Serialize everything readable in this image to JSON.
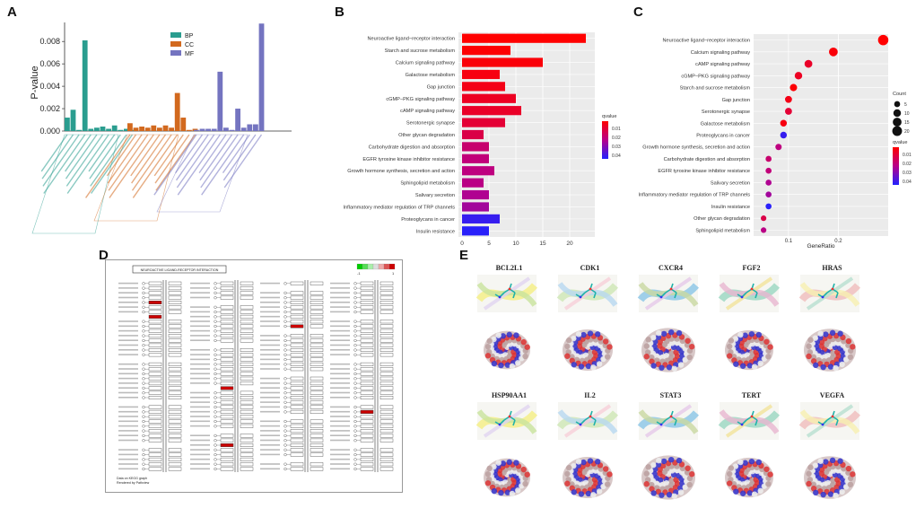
{
  "panels": {
    "A": "A",
    "B": "B",
    "C": "C",
    "D": "D",
    "E": "E"
  },
  "colors": {
    "BP": "#2a9d8f",
    "CC": "#d2691e",
    "MF": "#7474c0",
    "grad_top": "#ff0000",
    "grad_mid": "#b8008a",
    "grad_bot": "#2222ff"
  },
  "chart_data": [
    {
      "id": "A",
      "type": "bar",
      "ylabel": "P-value",
      "ylim": [
        0,
        0.0097
      ],
      "yticks": [
        "0.000",
        "0.002",
        "0.004",
        "0.006",
        "0.008"
      ],
      "ytick_values": [
        0,
        0.002,
        0.004,
        0.006,
        0.008
      ],
      "legend": [
        {
          "key": "BP",
          "label": "BP"
        },
        {
          "key": "CC",
          "label": "CC"
        },
        {
          "key": "MF",
          "label": "MF"
        }
      ],
      "groups": [
        {
          "key": "BP",
          "values": [
            0.0012,
            0.0019,
            0.0001,
            0.0081,
            0.0002,
            0.0003,
            0.0004,
            0.0002,
            0.0005,
            0.0001,
            0.0002,
            0.0001
          ]
        },
        {
          "key": "CC",
          "values": [
            0.0007,
            0.0003,
            0.0004,
            0.0003,
            0.0005,
            0.0003,
            0.0005,
            0.0003,
            0.0034,
            0.0012,
            0.0001,
            0.0002
          ]
        },
        {
          "key": "MF",
          "values": [
            0.0001,
            0.0002,
            0.0002,
            0.0002,
            0.0053,
            0.0003,
            0.0001,
            0.002,
            0.0003,
            0.0006,
            0.0006,
            0.0096
          ]
        }
      ]
    },
    {
      "id": "B",
      "type": "bar",
      "orientation": "horizontal",
      "xlim": [
        0,
        24
      ],
      "xticks": [
        0,
        5,
        10,
        15,
        20
      ],
      "legend_title": "qvalue",
      "legend_ticks": [
        "0.01",
        "0.02",
        "0.03",
        "0.04"
      ],
      "categories": [
        "Neuroactive ligand−receptor interaction",
        "Starch and sucrose metabolism",
        "Calcium signaling pathway",
        "Galactose metabolism",
        "Gap junction",
        "cGMP−PKG signaling pathway",
        "cAMP signaling pathway",
        "Serotonergic synapse",
        "Other glycan degradation",
        "Carbohydrate digestion and absorption",
        "EGFR tyrosine kinase inhibitor resistance",
        "Growth hormone synthesis, secretion and action",
        "Sphingolipid metabolism",
        "Salivary secretion",
        "Inflammatory mediator regulation of TRP channels",
        "Proteoglycans in cancer",
        "Insulin resistance"
      ],
      "values": [
        23,
        9,
        15,
        7,
        8,
        10,
        11,
        8,
        4,
        5,
        5,
        6,
        4,
        5,
        5,
        7,
        5
      ],
      "qvalues": [
        0.0005,
        0.001,
        0.002,
        0.003,
        0.004,
        0.006,
        0.007,
        0.009,
        0.012,
        0.018,
        0.02,
        0.021,
        0.022,
        0.024,
        0.026,
        0.042,
        0.044
      ]
    },
    {
      "id": "C",
      "type": "scatter",
      "xlabel": "GeneRatio",
      "xlim": [
        0.03,
        0.3
      ],
      "xticks": [
        "0.1",
        "0.2"
      ],
      "xtick_values": [
        0.1,
        0.2
      ],
      "size_legend_title": "Count",
      "size_legend": [
        5,
        10,
        15,
        20
      ],
      "color_legend_title": "qvalue",
      "color_legend_ticks": [
        "0.01",
        "0.02",
        "0.03",
        "0.04"
      ],
      "categories": [
        "Neuroactive ligand−receptor interaction",
        "Calcium signaling pathway",
        "cAMP signaling pathway",
        "cGMP−PKG signaling pathway",
        "Starch and sucrose metabolism",
        "Gap junction",
        "Serotonergic synapse",
        "Galactose metabolism",
        "Proteoglycans in cancer",
        "Growth hormone synthesis, secretion and action",
        "Carbohydrate digestion and absorption",
        "EGFR tyrosine kinase inhibitor resistance",
        "Salivary secretion",
        "Inflammatory mediator regulation of TRP channels",
        "Insulin resistance",
        "Other glycan degradation",
        "Sphingolipid metabolism"
      ],
      "x": [
        0.29,
        0.19,
        0.14,
        0.12,
        0.11,
        0.1,
        0.1,
        0.09,
        0.09,
        0.08,
        0.06,
        0.06,
        0.06,
        0.06,
        0.06,
        0.05,
        0.05
      ],
      "counts": [
        23,
        15,
        11,
        10,
        9,
        8,
        8,
        7,
        7,
        6,
        5,
        5,
        5,
        5,
        5,
        4,
        4
      ],
      "qvalues": [
        0.0005,
        0.002,
        0.007,
        0.006,
        0.001,
        0.004,
        0.009,
        0.003,
        0.042,
        0.021,
        0.018,
        0.02,
        0.024,
        0.026,
        0.044,
        0.012,
        0.022
      ]
    }
  ],
  "kegg": {
    "title": "NEUROACTIVE LIGAND-RECEPTOR INTERACTION",
    "scale_low": "-1",
    "scale_high": "1",
    "footer1": "Data on KEGG graph",
    "footer2": "Rendered by Pathview"
  },
  "proteins": [
    "BCL2L1",
    "CDK1",
    "CXCR4",
    "FGF2",
    "HRAS",
    "HSP90AA1",
    "IL2",
    "STAT3",
    "TERT",
    "VEGFA"
  ]
}
